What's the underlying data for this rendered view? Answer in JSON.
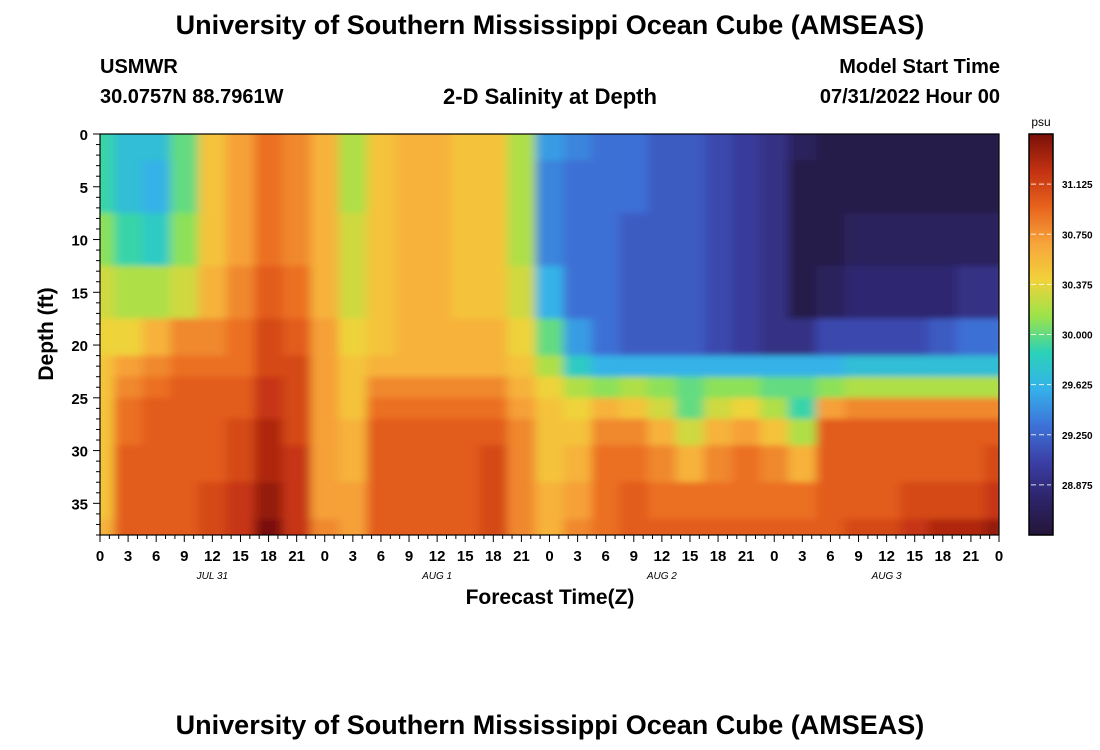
{
  "header": {
    "title": "University of Southern Mississippi Ocean Cube (AMSEAS)",
    "station": "USMWR",
    "coords": "30.0757N  88.7961W",
    "subtitle": "2-D Salinity at Depth",
    "model_start_label": "Model Start Time",
    "model_start_value": "07/31/2022 Hour 00"
  },
  "footer": {
    "title": "University of Southern Mississippi Ocean Cube (AMSEAS)"
  },
  "chart_data": {
    "type": "heatmap",
    "title": "2-D Salinity at Depth",
    "xlabel": "Forecast Time(Z)",
    "ylabel": "Depth (ft)",
    "x_ticks": [
      "0",
      "3",
      "6",
      "9",
      "12",
      "15",
      "18",
      "21",
      "0",
      "3",
      "6",
      "9",
      "12",
      "15",
      "18",
      "21",
      "0",
      "3",
      "6",
      "9",
      "12",
      "15",
      "18",
      "21",
      "0",
      "3",
      "6",
      "9",
      "12",
      "15",
      "18",
      "21",
      "0"
    ],
    "x_date_labels": [
      {
        "label": "JUL 31",
        "hour": 12
      },
      {
        "label": "AUG 1",
        "hour": 36
      },
      {
        "label": "AUG 2",
        "hour": 60
      },
      {
        "label": "AUG 3",
        "hour": 84
      }
    ],
    "x_range_hours": [
      0,
      96
    ],
    "y_ticks": [
      0,
      5,
      10,
      15,
      20,
      25,
      30,
      35
    ],
    "y_range": [
      0,
      38
    ],
    "colorbar": {
      "unit": "psu",
      "ticks": [
        "31.125",
        "30.750",
        "30.375",
        "30.000",
        "29.625",
        "29.250",
        "28.875"
      ],
      "range": [
        28.5,
        31.5
      ],
      "colors": [
        "#241538",
        "#2d2469",
        "#3b3fa5",
        "#3d72d8",
        "#35b1ea",
        "#2ad2b8",
        "#9be34a",
        "#f2d23a",
        "#f7a43b",
        "#e8631d",
        "#c23112",
        "#7a1008"
      ]
    },
    "hours": [
      0,
      3,
      6,
      9,
      12,
      15,
      18,
      21,
      24,
      27,
      30,
      33,
      36,
      39,
      42,
      45,
      48,
      51,
      54,
      57,
      60,
      63,
      66,
      69,
      72,
      75,
      78,
      81,
      84,
      87,
      90,
      93,
      96
    ],
    "depths": [
      0,
      5,
      10,
      15,
      20,
      22,
      24,
      26,
      28,
      31,
      35,
      38
    ],
    "values": [
      [
        29.9,
        29.7,
        29.7,
        30.0,
        30.5,
        30.7,
        30.9,
        30.8,
        30.6,
        30.2,
        30.5,
        30.6,
        30.6,
        30.5,
        30.5,
        30.2,
        29.5,
        29.4,
        29.3,
        29.3,
        29.2,
        29.2,
        29.1,
        29.0,
        28.9,
        28.7,
        28.6,
        28.6,
        28.6,
        28.6,
        28.6,
        28.6,
        28.6
      ],
      [
        29.9,
        29.7,
        29.6,
        30.0,
        30.5,
        30.7,
        30.9,
        30.8,
        30.6,
        30.2,
        30.5,
        30.6,
        30.6,
        30.5,
        30.5,
        30.2,
        29.4,
        29.3,
        29.3,
        29.3,
        29.2,
        29.2,
        29.1,
        29.0,
        28.9,
        28.6,
        28.6,
        28.6,
        28.6,
        28.6,
        28.6,
        28.6,
        28.6
      ],
      [
        30.1,
        29.9,
        29.8,
        30.1,
        30.5,
        30.7,
        30.9,
        30.8,
        30.6,
        30.3,
        30.5,
        30.6,
        30.6,
        30.5,
        30.5,
        30.2,
        29.4,
        29.3,
        29.3,
        29.2,
        29.2,
        29.2,
        29.1,
        29.0,
        28.9,
        28.6,
        28.6,
        28.7,
        28.7,
        28.7,
        28.7,
        28.7,
        28.7
      ],
      [
        30.3,
        30.2,
        30.2,
        30.3,
        30.6,
        30.8,
        31.0,
        30.9,
        30.6,
        30.3,
        30.5,
        30.6,
        30.6,
        30.5,
        30.5,
        30.3,
        29.6,
        29.3,
        29.3,
        29.2,
        29.2,
        29.2,
        29.1,
        29.0,
        28.9,
        28.6,
        28.7,
        28.8,
        28.8,
        28.8,
        28.8,
        28.9,
        28.9
      ],
      [
        30.4,
        30.4,
        30.6,
        30.8,
        30.8,
        30.9,
        31.1,
        31.0,
        30.7,
        30.4,
        30.5,
        30.6,
        30.6,
        30.6,
        30.6,
        30.4,
        30.0,
        29.5,
        29.3,
        29.2,
        29.2,
        29.2,
        29.1,
        29.0,
        28.9,
        28.9,
        29.1,
        29.1,
        29.1,
        29.1,
        29.2,
        29.3,
        29.3
      ],
      [
        30.5,
        30.7,
        30.8,
        30.9,
        30.9,
        30.9,
        31.1,
        31.1,
        30.7,
        30.5,
        30.6,
        30.6,
        30.6,
        30.6,
        30.6,
        30.5,
        30.2,
        29.8,
        29.6,
        29.6,
        29.6,
        29.6,
        29.6,
        29.6,
        29.6,
        29.6,
        29.6,
        29.7,
        29.7,
        29.7,
        29.7,
        29.7,
        29.7
      ],
      [
        30.5,
        30.8,
        30.9,
        31.0,
        31.0,
        31.0,
        31.2,
        31.1,
        30.7,
        30.5,
        30.8,
        30.8,
        30.8,
        30.8,
        30.8,
        30.6,
        30.4,
        30.2,
        30.1,
        30.2,
        30.1,
        30.0,
        30.1,
        30.1,
        30.0,
        30.0,
        30.1,
        30.2,
        30.2,
        30.2,
        30.2,
        30.2,
        30.2
      ],
      [
        30.5,
        30.9,
        31.0,
        31.0,
        31.0,
        31.0,
        31.2,
        31.1,
        30.7,
        30.5,
        30.9,
        30.9,
        30.9,
        30.9,
        30.9,
        30.7,
        30.5,
        30.4,
        30.6,
        30.5,
        30.3,
        30.0,
        30.3,
        30.4,
        30.2,
        29.9,
        30.7,
        30.8,
        30.8,
        30.8,
        30.8,
        30.8,
        30.8
      ],
      [
        30.5,
        30.9,
        31.0,
        31.0,
        31.0,
        31.1,
        31.3,
        31.1,
        30.7,
        30.6,
        31.0,
        31.0,
        31.0,
        31.0,
        31.0,
        30.8,
        30.5,
        30.5,
        30.8,
        30.8,
        30.6,
        30.3,
        30.6,
        30.7,
        30.5,
        30.2,
        31.0,
        31.0,
        31.0,
        31.0,
        31.0,
        31.0,
        31.0
      ],
      [
        30.5,
        31.0,
        31.0,
        31.0,
        31.0,
        31.1,
        31.3,
        31.2,
        30.7,
        30.6,
        31.0,
        31.0,
        31.0,
        31.0,
        31.1,
        30.8,
        30.5,
        30.6,
        30.9,
        30.9,
        30.8,
        30.6,
        30.8,
        30.9,
        30.8,
        30.6,
        31.0,
        31.0,
        31.0,
        31.0,
        31.0,
        31.0,
        31.1
      ],
      [
        30.5,
        31.0,
        31.0,
        31.0,
        31.1,
        31.2,
        31.4,
        31.2,
        30.7,
        30.7,
        31.0,
        31.0,
        31.0,
        31.0,
        31.1,
        30.8,
        30.6,
        30.7,
        30.9,
        31.0,
        30.9,
        30.9,
        30.9,
        30.9,
        30.9,
        30.9,
        31.0,
        31.0,
        31.0,
        31.1,
        31.1,
        31.1,
        31.2
      ],
      [
        30.6,
        31.0,
        31.0,
        31.0,
        31.1,
        31.2,
        31.5,
        31.2,
        30.8,
        30.7,
        31.0,
        31.0,
        31.0,
        31.0,
        31.1,
        30.8,
        30.6,
        30.8,
        30.9,
        31.0,
        31.0,
        31.0,
        31.0,
        31.0,
        31.0,
        31.0,
        31.0,
        31.1,
        31.1,
        31.2,
        31.3,
        31.3,
        31.4
      ]
    ]
  }
}
